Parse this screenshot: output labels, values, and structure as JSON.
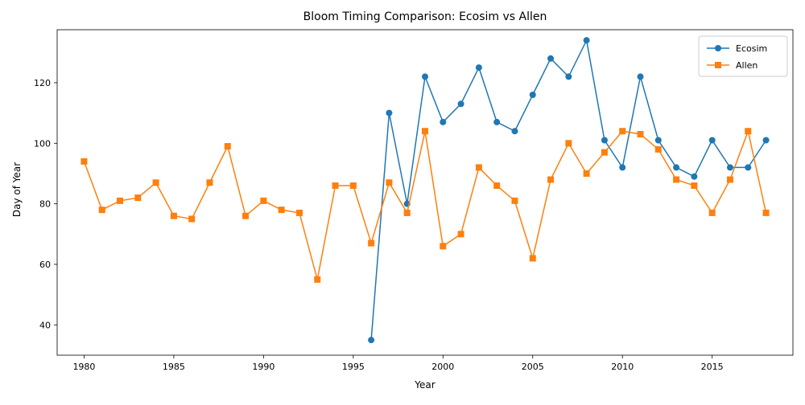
{
  "chart_data": {
    "type": "line",
    "title": "Bloom Timing Comparison: Ecosim vs Allen",
    "xlabel": "Year",
    "ylabel": "Day of Year",
    "xlim": [
      1978.5,
      2019.5
    ],
    "ylim": [
      30,
      137.5
    ],
    "xticks": [
      1980,
      1985,
      1990,
      1995,
      2000,
      2005,
      2010,
      2015
    ],
    "yticks": [
      40,
      60,
      80,
      100,
      120
    ],
    "grid": false,
    "legend_position": "top-right",
    "series": [
      {
        "name": "Ecosim",
        "color": "#1f77b4",
        "marker": "circle",
        "x": [
          1996,
          1997,
          1998,
          1999,
          2000,
          2001,
          2002,
          2003,
          2004,
          2005,
          2006,
          2007,
          2008,
          2009,
          2010,
          2011,
          2012,
          2013,
          2014,
          2015,
          2016,
          2017,
          2018
        ],
        "y": [
          35,
          110,
          80,
          122,
          107,
          113,
          125,
          107,
          104,
          116,
          128,
          122,
          134,
          101,
          92,
          122,
          101,
          92,
          89,
          101,
          92,
          92,
          101
        ]
      },
      {
        "name": "Allen",
        "color": "#ff7f0e",
        "marker": "square",
        "x": [
          1980,
          1981,
          1982,
          1983,
          1984,
          1985,
          1986,
          1987,
          1988,
          1989,
          1990,
          1991,
          1992,
          1993,
          1994,
          1995,
          1996,
          1997,
          1998,
          1999,
          2000,
          2001,
          2002,
          2003,
          2004,
          2005,
          2006,
          2007,
          2008,
          2009,
          2010,
          2011,
          2012,
          2013,
          2014,
          2015,
          2016,
          2017,
          2018
        ],
        "y": [
          94,
          78,
          81,
          82,
          87,
          76,
          75,
          87,
          99,
          76,
          81,
          78,
          77,
          55,
          86,
          86,
          67,
          87,
          77,
          104,
          66,
          70,
          92,
          86,
          81,
          62,
          88,
          100,
          90,
          97,
          104,
          103,
          98,
          88,
          86,
          77,
          88,
          104,
          77
        ]
      }
    ]
  }
}
